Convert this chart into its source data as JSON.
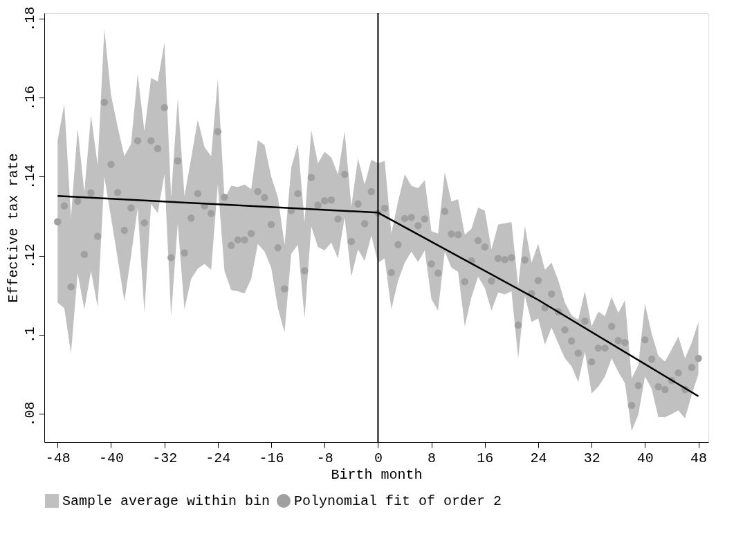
{
  "chart_data": {
    "type": "scatter",
    "xlabel": "Birth month",
    "ylabel": "Effective tax rate",
    "annotations": [
      "Sample average within bin"
    ],
    "x": [
      -48,
      -47,
      -46,
      -45,
      -44,
      -43,
      -42,
      -41,
      -40,
      -39,
      -38,
      -37,
      -36,
      -35,
      -34,
      -33,
      -32,
      -31,
      -30,
      -29,
      -28,
      -27,
      -26,
      -25,
      -24,
      -23,
      -22,
      -21,
      -20,
      -19,
      -18,
      -17,
      -16,
      -15,
      -14,
      -13,
      -12,
      -11,
      -10,
      -9,
      -8,
      -7,
      -6,
      -5,
      -4,
      -3,
      -2,
      -1,
      0,
      1,
      2,
      3,
      4,
      5,
      6,
      7,
      8,
      9,
      10,
      11,
      12,
      13,
      14,
      15,
      16,
      17,
      18,
      19,
      20,
      21,
      22,
      23,
      24,
      25,
      26,
      27,
      28,
      29,
      30,
      31,
      32,
      33,
      34,
      35,
      36,
      37,
      38,
      39,
      40,
      41,
      42,
      43,
      44,
      45,
      46,
      47,
      48
    ],
    "series": [
      {
        "name": "Polynomial fit of order 2",
        "color": "#a0a0a0",
        "values": [
          0.1286,
          0.1326,
          0.1121,
          0.1338,
          0.1203,
          0.1359,
          0.1249,
          0.1588,
          0.1431,
          0.136,
          0.1264,
          0.1321,
          0.1491,
          0.1283,
          0.1491,
          0.1471,
          0.1575,
          0.1195,
          0.144,
          0.1207,
          0.1295,
          0.1357,
          0.1326,
          0.1307,
          0.1514,
          0.1348,
          0.1226,
          0.124,
          0.124,
          0.1256,
          0.1362,
          0.1347,
          0.1279,
          0.122,
          0.1116,
          0.1314,
          0.1357,
          0.1162,
          0.1398,
          0.1328,
          0.1339,
          0.1341,
          0.1293,
          0.1406,
          0.1236,
          0.1331,
          0.1281,
          0.1362,
          0.1308,
          0.132,
          0.1157,
          0.1228,
          0.1294,
          0.1297,
          0.1276,
          0.1293,
          0.1179,
          0.1156,
          0.1312,
          0.1255,
          0.1253,
          0.1134,
          0.1187,
          0.1238,
          0.1222,
          0.1136,
          0.1193,
          0.119,
          0.1195,
          0.1024,
          0.1189,
          0.1104,
          0.1137,
          0.1068,
          0.1103,
          0.1058,
          0.1012,
          0.0984,
          0.0953,
          0.1034,
          0.0931,
          0.0966,
          0.0966,
          0.1021,
          0.0985,
          0.098,
          0.0821,
          0.0871,
          0.0987,
          0.0938,
          0.0868,
          0.0861,
          0.0884,
          0.0903,
          0.0861,
          0.0917,
          0.094
        ],
        "upper": [
          0.1492,
          0.1584,
          0.1297,
          0.1522,
          0.136,
          0.1555,
          0.1429,
          0.1774,
          0.1607,
          0.1526,
          0.1452,
          0.1483,
          0.1659,
          0.1515,
          0.165,
          0.1641,
          0.1739,
          0.1348,
          0.1598,
          0.1351,
          0.1446,
          0.1544,
          0.1475,
          0.1452,
          0.1647,
          0.1343,
          0.1377,
          0.1374,
          0.138,
          0.1368,
          0.1492,
          0.148,
          0.14,
          0.1348,
          0.1228,
          0.1423,
          0.1483,
          0.1285,
          0.1518,
          0.1434,
          0.1463,
          0.1449,
          0.1406,
          0.1515,
          0.1325,
          0.1446,
          0.138,
          0.1443,
          0.1434,
          0.144,
          0.1256,
          0.1337,
          0.1406,
          0.1377,
          0.1371,
          0.1391,
          0.1262,
          0.1256,
          0.1411,
          0.1337,
          0.1343,
          0.1253,
          0.1268,
          0.1322,
          0.1314,
          0.1216,
          0.1279,
          0.1282,
          0.1285,
          0.1124,
          0.1276,
          0.1182,
          0.123,
          0.1164,
          0.1182,
          0.1138,
          0.1081,
          0.1049,
          0.1038,
          0.111,
          0.1021,
          0.1058,
          0.1047,
          0.1095,
          0.1055,
          0.1087,
          0.0889,
          0.0923,
          0.1078,
          0.1003,
          0.0946,
          0.0932,
          0.0963,
          0.0995,
          0.094,
          0.098,
          0.1032
        ],
        "lower": [
          0.1081,
          0.1067,
          0.0952,
          0.1156,
          0.1064,
          0.1161,
          0.107,
          0.14,
          0.1297,
          0.1193,
          0.1084,
          0.1199,
          0.1322,
          0.1055,
          0.1331,
          0.1308,
          0.1406,
          0.1047,
          0.1282,
          0.1064,
          0.1141,
          0.1167,
          0.1179,
          0.1164,
          0.138,
          0.1161,
          0.1113,
          0.111,
          0.1104,
          0.1141,
          0.123,
          0.121,
          0.117,
          0.1067,
          0.1006,
          0.1205,
          0.1228,
          0.1041,
          0.1274,
          0.1222,
          0.1213,
          0.1233,
          0.1193,
          0.1297,
          0.1147,
          0.1216,
          0.1187,
          0.1251,
          0.1182,
          0.1193,
          0.1064,
          0.1136,
          0.1182,
          0.121,
          0.1184,
          0.1213,
          0.109,
          0.1061,
          0.121,
          0.117,
          0.1159,
          0.1021,
          0.1095,
          0.1147,
          0.1118,
          0.1061,
          0.1107,
          0.1102,
          0.111,
          0.094,
          0.1098,
          0.1032,
          0.1041,
          0.0975,
          0.1018,
          0.0978,
          0.094,
          0.092,
          0.088,
          0.0957,
          0.0851,
          0.0868,
          0.0894,
          0.094,
          0.0906,
          0.0877,
          0.0756,
          0.0797,
          0.0894,
          0.0863,
          0.0791,
          0.0791,
          0.0799,
          0.0808,
          0.0788,
          0.0848,
          0.09
        ]
      },
      {
        "type": "line",
        "color": "#000000",
        "x": [
          -48,
          -24,
          0,
          24,
          48
        ],
        "values": [
          0.1351,
          0.133,
          0.1309,
          0.1088,
          0.0844
        ]
      }
    ],
    "xlim": [
      -50,
      49.5
    ],
    "ylim": [
      0.0728,
      0.1814
    ],
    "xticks": [
      -48,
      -40,
      -32,
      -24,
      -16,
      -8,
      0,
      8,
      16,
      24,
      32,
      40,
      48
    ],
    "yticks": [
      {
        "value": 0.08,
        "label": ".08"
      },
      {
        "value": 0.1,
        "label": ".1"
      },
      {
        "value": 0.12,
        "label": ".12"
      },
      {
        "value": 0.14,
        "label": ".14"
      },
      {
        "value": 0.16,
        "label": ".16"
      },
      {
        "value": 0.18,
        "label": ".18"
      }
    ],
    "ref_lines": [
      {
        "axis": "x",
        "value": 0,
        "color": "#000000"
      }
    ],
    "grid": false,
    "legend": "bottom"
  }
}
